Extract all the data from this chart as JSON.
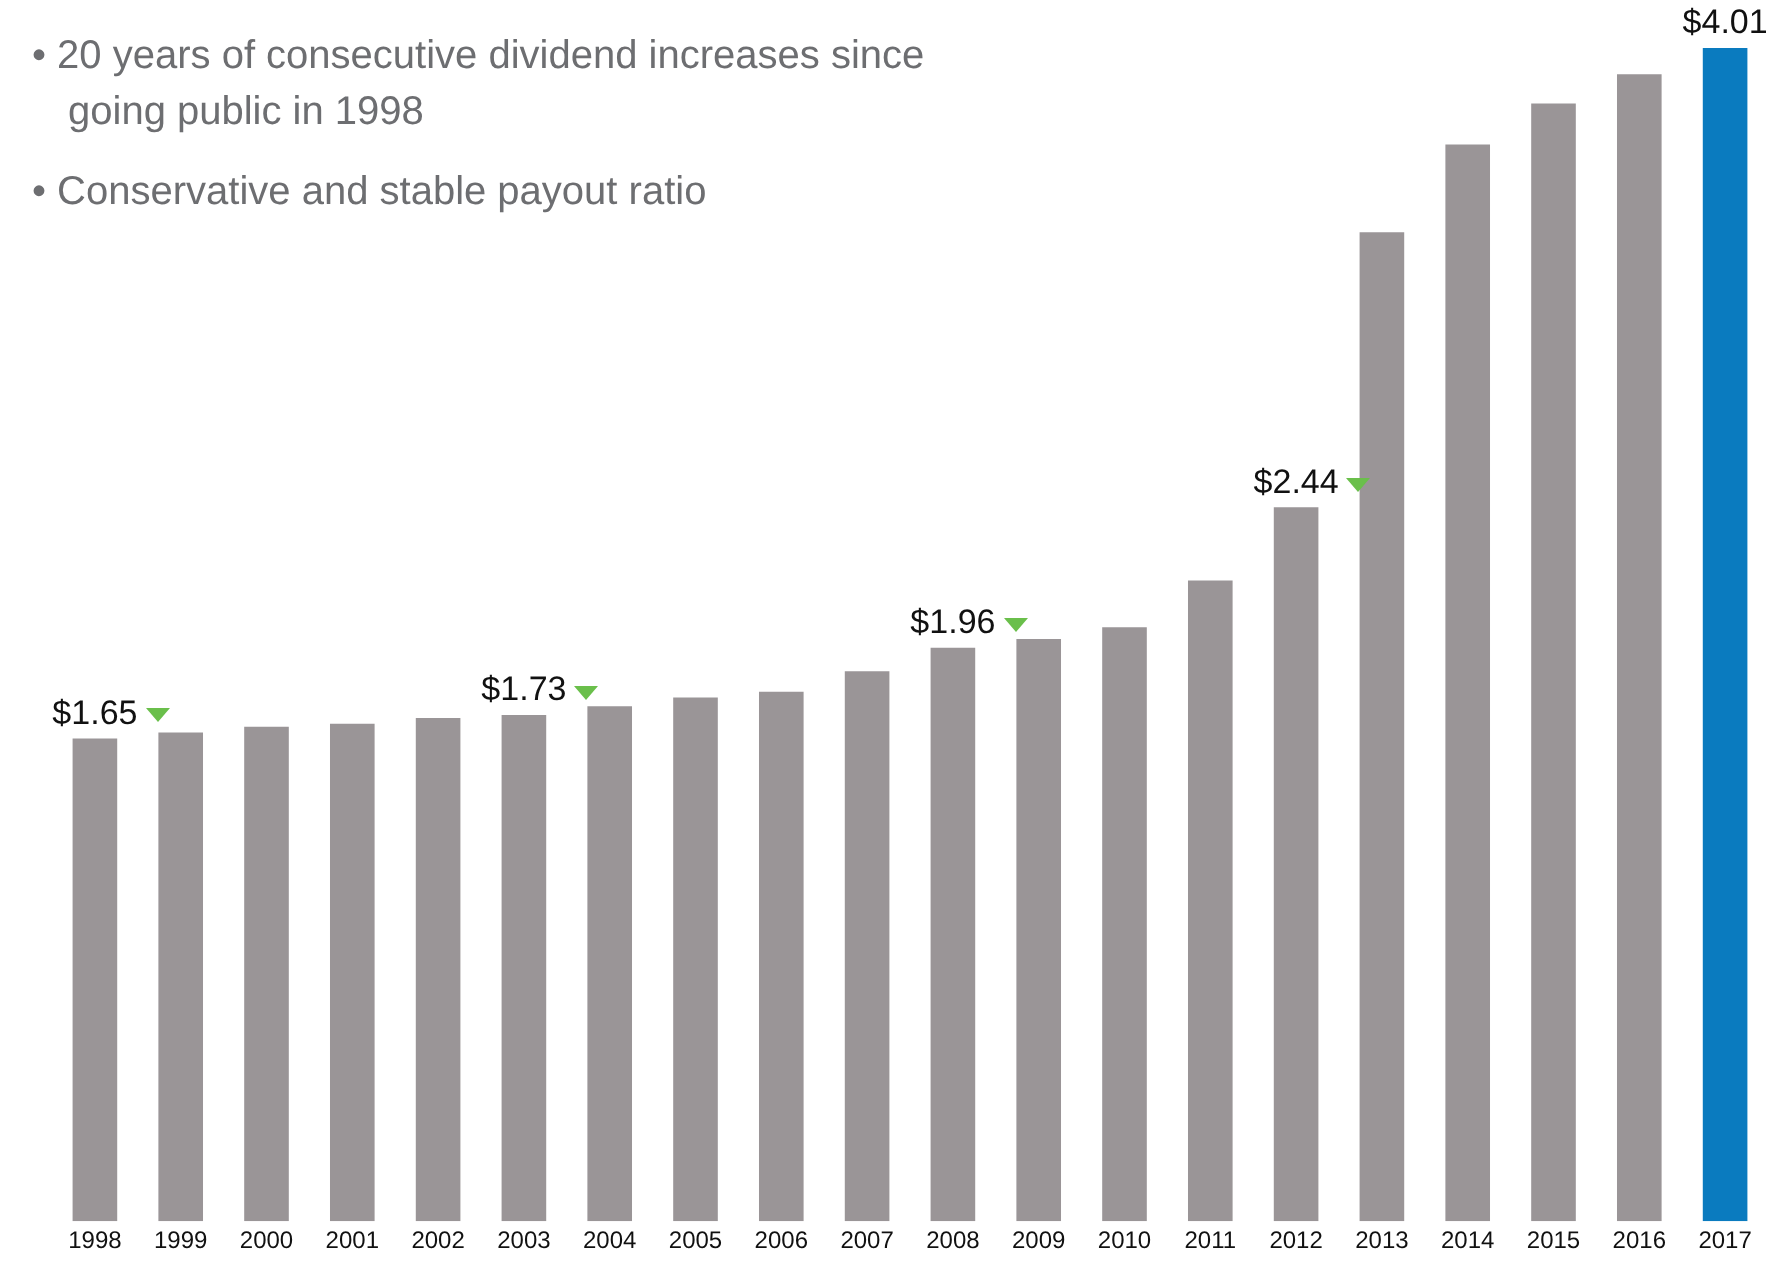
{
  "chart_data": {
    "type": "bar",
    "categories": [
      "1998",
      "1999",
      "2000",
      "2001",
      "2002",
      "2003",
      "2004",
      "2005",
      "2006",
      "2007",
      "2008",
      "2009",
      "2010",
      "2011",
      "2012",
      "2013",
      "2014",
      "2015",
      "2016",
      "2017"
    ],
    "values": [
      1.65,
      1.67,
      1.69,
      1.7,
      1.72,
      1.73,
      1.76,
      1.79,
      1.81,
      1.88,
      1.96,
      1.99,
      2.03,
      2.19,
      2.44,
      3.38,
      3.68,
      3.82,
      3.92,
      4.01
    ],
    "colors": [
      "#9a9597",
      "#9a9597",
      "#9a9597",
      "#9a9597",
      "#9a9597",
      "#9a9597",
      "#9a9597",
      "#9a9597",
      "#9a9597",
      "#9a9597",
      "#9a9597",
      "#9a9597",
      "#9a9597",
      "#9a9597",
      "#9a9597",
      "#9a9597",
      "#9a9597",
      "#9a9597",
      "#9a9597",
      "#0a7bbf"
    ],
    "value_labels": [
      "$1.65",
      null,
      null,
      null,
      null,
      "$1.73",
      null,
      null,
      null,
      null,
      "$1.96",
      null,
      null,
      null,
      "$2.44",
      null,
      null,
      null,
      null,
      "$4.01"
    ],
    "annotations": [
      "• 20 years of consecutive dividend increases since going public in 1998",
      "• Conservative and stable payout ratio"
    ],
    "grid": false,
    "legend": false
  }
}
